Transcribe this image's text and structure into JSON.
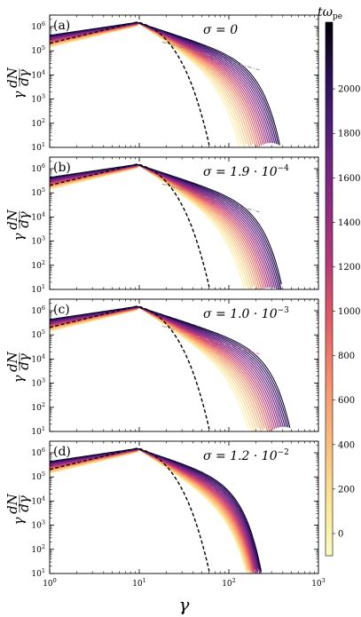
{
  "chart_data": {
    "type": "line",
    "x_scale": "log",
    "y_scale": "log",
    "xlim": [
      1,
      1000
    ],
    "ylim": [
      10,
      3000000
    ],
    "x_ticks": [
      "10^0",
      "10^1",
      "10^2",
      "10^3"
    ],
    "y_ticks": [
      "10^1",
      "10^2",
      "10^3",
      "10^4",
      "10^5",
      "10^6"
    ],
    "xlabel": "γ",
    "ylabel": "γ dN/dγ",
    "ylabel_parts": {
      "gamma": "γ",
      "num": "dN",
      "den": "dγ"
    },
    "colorbar": {
      "title": "tω_pe",
      "title_main": "tω",
      "title_sub": "pe",
      "range": [
        -100,
        2300
      ],
      "ticks": [
        "0",
        "200",
        "400",
        "600",
        "800",
        "1000",
        "1200",
        "1400",
        "1600",
        "1800",
        "2000"
      ],
      "colors": [
        "#fcfdbf",
        "#fde38f",
        "#feb979",
        "#f98e6a",
        "#e45a63",
        "#b73779",
        "#8c2981",
        "#5e1f80",
        "#2c115f",
        "#000004"
      ]
    },
    "reference": {
      "style": "dashed",
      "color": "#000000",
      "description_shown": false
    },
    "powerlaw": {
      "style": "dash-dot",
      "color_seq": [
        "#888888",
        "#e07a8c",
        "#a03070"
      ]
    },
    "panels": [
      {
        "label": "(a)",
        "sigma": "σ = 0",
        "sigma_main": "σ = 0",
        "sigma_exp": "",
        "peak_x": 9.5,
        "powerlaw_line": {
          "x": [
            18,
            220
          ],
          "y": [
            230000,
            16000
          ]
        },
        "cutoff_final": 150,
        "cutoff_early": 60
      },
      {
        "label": "(b)",
        "sigma": "σ = 1.9·10^-4",
        "sigma_main": "σ = 1.9 · 10",
        "sigma_exp": "−4",
        "peak_x": 9.5,
        "powerlaw_line": {
          "x": [
            18,
            220
          ],
          "y": [
            230000,
            16000
          ]
        },
        "cutoff_final": 160,
        "cutoff_early": 70
      },
      {
        "label": "(c)",
        "sigma": "σ = 1.0·10^-3",
        "sigma_main": "σ = 1.0 · 10",
        "sigma_exp": "−3",
        "peak_x": 9.5,
        "powerlaw_line": {
          "x": [
            18,
            220
          ],
          "y": [
            230000,
            16000
          ]
        },
        "cutoff_final": 200,
        "cutoff_early": 80
      },
      {
        "label": "(d)",
        "sigma": "σ = 1.2·10^-2",
        "sigma_main": "σ = 1.2 · 10",
        "sigma_exp": "−2",
        "peak_x": 9.5,
        "powerlaw_line": null,
        "cutoff_final": 90,
        "cutoff_early": 75
      }
    ]
  }
}
